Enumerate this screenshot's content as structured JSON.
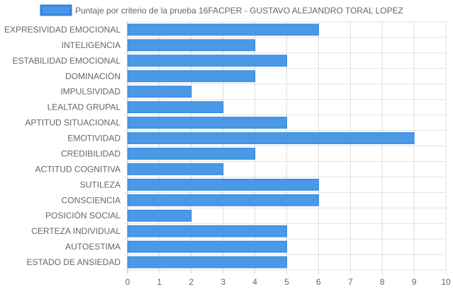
{
  "chart_data": {
    "type": "bar",
    "orientation": "horizontal",
    "categories": [
      "EXPRESIVIDAD EMOCIONAL",
      "INTELIGENCIA",
      "ESTABILIDAD EMOCIONAL",
      "DOMINACIÓN",
      "IMPULSIVIDAD",
      "LEALTAD GRUPAL",
      "APTITUD SITUACIONAL",
      "EMOTIVIDAD",
      "CREDIBILIDAD",
      "ACTITUD COGNITIVA",
      "SUTILEZA",
      "CONSCIENCIA",
      "POSICIÓN SOCIAL",
      "CERTEZA INDIVIDUAL",
      "AUTOESTIMA",
      "ESTADO DE ANSIEDAD"
    ],
    "series": [
      {
        "name": "Puntaje por criterio de la prueba 16FACPER - GUSTAVO ALEJANDRO TORAL LOPEZ",
        "values": [
          6,
          4,
          5,
          4,
          2,
          3,
          5,
          9,
          4,
          3,
          6,
          6,
          2,
          5,
          5,
          5
        ],
        "color": "#4a98e6",
        "border_color": "#2e86de"
      }
    ],
    "xlim": [
      0,
      10
    ],
    "xticks": [
      "0",
      "1",
      "2",
      "3",
      "4",
      "5",
      "6",
      "7",
      "8",
      "9",
      "10"
    ],
    "grid": true,
    "legend_position": "top"
  }
}
